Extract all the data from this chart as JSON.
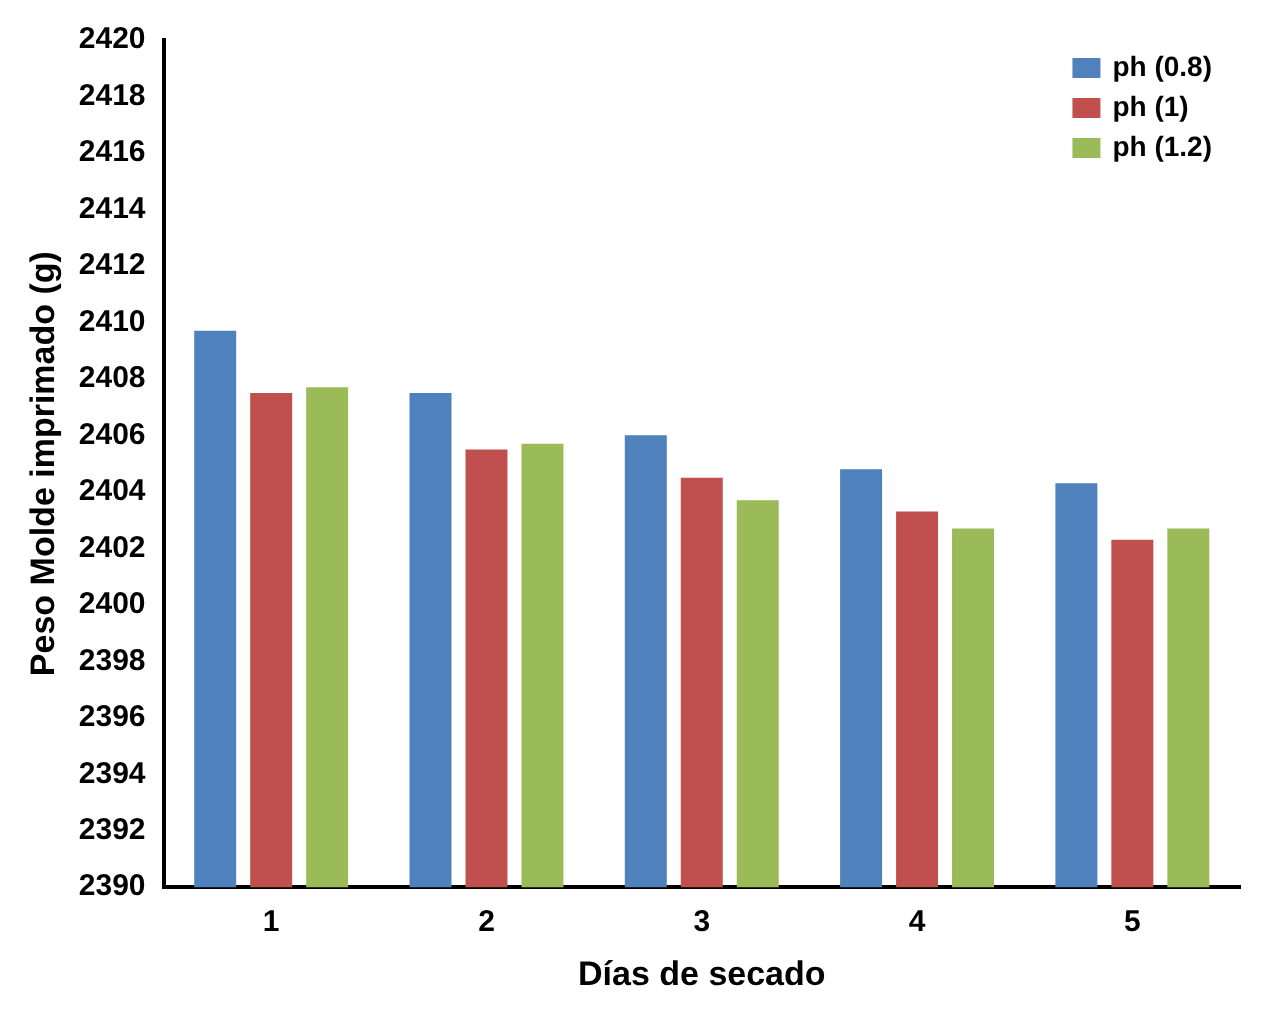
{
  "chart_data": {
    "type": "bar",
    "xlabel": "Días de secado",
    "ylabel": "Peso Molde imprimado (g)",
    "categories": [
      "1",
      "2",
      "3",
      "4",
      "5"
    ],
    "series": [
      {
        "name": "ph (0.8)",
        "color": "#4f81bd",
        "values": [
          2409.7,
          2407.5,
          2406.0,
          2404.8,
          2404.3
        ]
      },
      {
        "name": "ph (1)",
        "color": "#c0504d",
        "values": [
          2407.5,
          2405.5,
          2404.5,
          2403.3,
          2402.3
        ]
      },
      {
        "name": "ph (1.2)",
        "color": "#9bbb59",
        "values": [
          2407.7,
          2405.7,
          2403.7,
          2402.7,
          2402.7
        ]
      }
    ],
    "ylim": [
      2390,
      2420
    ],
    "yticks": [
      2390,
      2392,
      2394,
      2396,
      2398,
      2400,
      2402,
      2404,
      2406,
      2408,
      2410,
      2412,
      2414,
      2416,
      2418,
      2420
    ],
    "grid": false,
    "legend": "top right"
  }
}
